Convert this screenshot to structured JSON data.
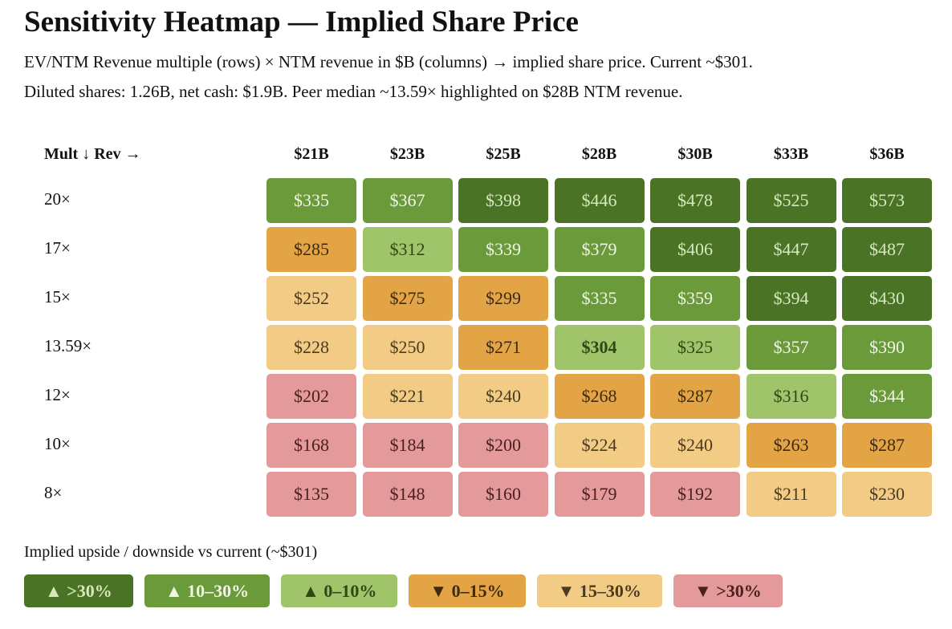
{
  "header": {
    "title": "Sensitivity Heatmap — Implied Share Price",
    "subtitle_lines": [
      "EV/NTM Revenue multiple (rows) × NTM revenue in $B (columns) → implied share price. Current ~$301.",
      "Diluted shares: 1.26B, net cash: $1.9B. Peer median ~13.59× highlighted on $28B NTM revenue."
    ]
  },
  "table": {
    "corner": "Mult ↓ Rev →",
    "columns": [
      "$21B",
      "$23B",
      "$25B",
      "$28B",
      "$30B",
      "$33B",
      "$36B"
    ],
    "rows": [
      {
        "label": "20×",
        "cells": [
          {
            "text": "$335",
            "color": "#6b9a3a"
          },
          {
            "text": "$367",
            "color": "#6b9a3a"
          },
          {
            "text": "$398",
            "color": "#4a7326"
          },
          {
            "text": "$446",
            "color": "#4a7326"
          },
          {
            "text": "$478",
            "color": "#4a7326"
          },
          {
            "text": "$525",
            "color": "#4a7326"
          },
          {
            "text": "$573",
            "color": "#4a7326"
          }
        ]
      },
      {
        "label": "17×",
        "cells": [
          {
            "text": "$285",
            "color": "#e3a446"
          },
          {
            "text": "$312",
            "color": "#9fc46a"
          },
          {
            "text": "$339",
            "color": "#6b9a3a"
          },
          {
            "text": "$379",
            "color": "#6b9a3a"
          },
          {
            "text": "$406",
            "color": "#4a7326"
          },
          {
            "text": "$447",
            "color": "#4a7326"
          },
          {
            "text": "$487",
            "color": "#4a7326"
          }
        ]
      },
      {
        "label": "15×",
        "cells": [
          {
            "text": "$252",
            "color": "#f2cb85"
          },
          {
            "text": "$275",
            "color": "#e3a446"
          },
          {
            "text": "$299",
            "color": "#e3a446"
          },
          {
            "text": "$335",
            "color": "#6b9a3a"
          },
          {
            "text": "$359",
            "color": "#6b9a3a"
          },
          {
            "text": "$394",
            "color": "#4a7326"
          },
          {
            "text": "$430",
            "color": "#4a7326"
          }
        ]
      },
      {
        "label": "13.59×",
        "cells": [
          {
            "text": "$228",
            "color": "#f2cb85"
          },
          {
            "text": "$250",
            "color": "#f2cb85"
          },
          {
            "text": "$271",
            "color": "#e3a446"
          },
          {
            "text": "$304",
            "color": "#9fc46a",
            "bold": true
          },
          {
            "text": "$325",
            "color": "#9fc46a"
          },
          {
            "text": "$357",
            "color": "#6b9a3a"
          },
          {
            "text": "$390",
            "color": "#6b9a3a"
          }
        ]
      },
      {
        "label": "12×",
        "cells": [
          {
            "text": "$202",
            "color": "#e49a9a"
          },
          {
            "text": "$221",
            "color": "#f2cb85"
          },
          {
            "text": "$240",
            "color": "#f2cb85"
          },
          {
            "text": "$268",
            "color": "#e3a446"
          },
          {
            "text": "$287",
            "color": "#e3a446"
          },
          {
            "text": "$316",
            "color": "#9fc46a"
          },
          {
            "text": "$344",
            "color": "#6b9a3a"
          }
        ]
      },
      {
        "label": "10×",
        "cells": [
          {
            "text": "$168",
            "color": "#e49a9a"
          },
          {
            "text": "$184",
            "color": "#e49a9a"
          },
          {
            "text": "$200",
            "color": "#e49a9a"
          },
          {
            "text": "$224",
            "color": "#f2cb85"
          },
          {
            "text": "$240",
            "color": "#f2cb85"
          },
          {
            "text": "$263",
            "color": "#e3a446"
          },
          {
            "text": "$287",
            "color": "#e3a446"
          }
        ]
      },
      {
        "label": "8×",
        "cells": [
          {
            "text": "$135",
            "color": "#e49a9a"
          },
          {
            "text": "$148",
            "color": "#e49a9a"
          },
          {
            "text": "$160",
            "color": "#e49a9a"
          },
          {
            "text": "$179",
            "color": "#e49a9a"
          },
          {
            "text": "$192",
            "color": "#e49a9a"
          },
          {
            "text": "$211",
            "color": "#f2cb85"
          },
          {
            "text": "$230",
            "color": "#f2cb85"
          }
        ]
      }
    ]
  },
  "legend": {
    "title": "Implied upside / downside vs current (~$301)",
    "items": [
      {
        "label": "▲ >30%",
        "color": "#4a7326",
        "text_color": "#d6e8bc"
      },
      {
        "label": "▲ 10–30%",
        "color": "#6b9a3a",
        "text_color": "#f0f5e6"
      },
      {
        "label": "▲ 0–10%",
        "color": "#9fc46a",
        "text_color": "#2d4a14"
      },
      {
        "label": "▼ 0–15%",
        "color": "#e3a446",
        "text_color": "#3d2a10"
      },
      {
        "label": "▼ 15–30%",
        "color": "#f2cb85",
        "text_color": "#4a3a20"
      },
      {
        "label": "▼ >30%",
        "color": "#e49a9a",
        "text_color": "#4a2020"
      }
    ]
  }
}
